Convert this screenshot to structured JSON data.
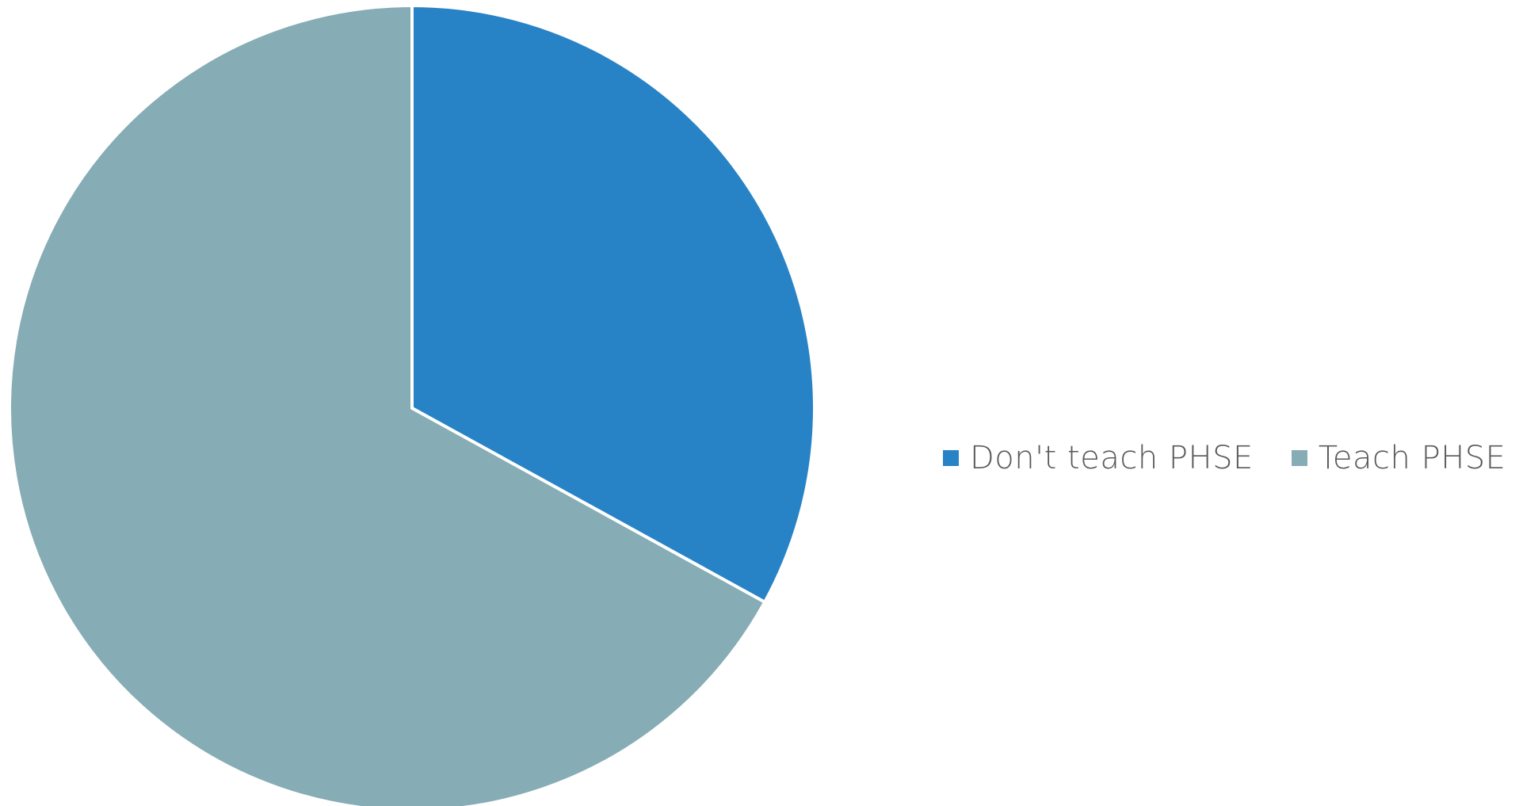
{
  "chart_data": {
    "type": "pie",
    "title": "",
    "start_angle_deg": 0,
    "direction": "clockwise",
    "legend_position": "right",
    "slices": [
      {
        "label": "Don't teach PHSE",
        "value": 33,
        "color": "#2883C6"
      },
      {
        "label": "Teach PHSE",
        "value": 67,
        "color": "#86ACB5"
      }
    ]
  },
  "legend": {
    "items": [
      {
        "label": "Don't teach PHSE",
        "color": "#2883C6"
      },
      {
        "label": "Teach PHSE",
        "color": "#86ACB5"
      }
    ]
  }
}
